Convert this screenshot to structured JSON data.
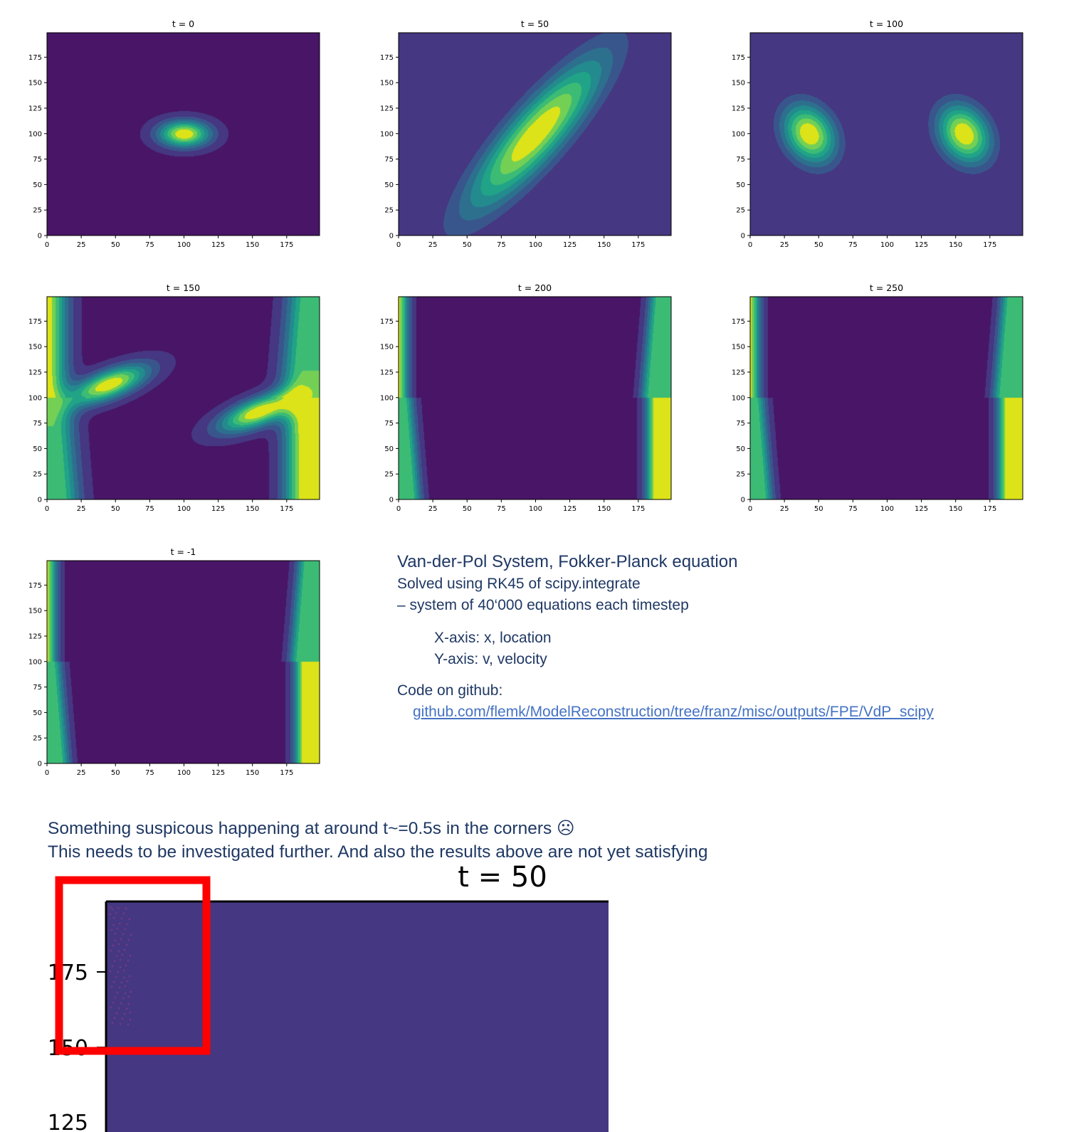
{
  "chart_data": [
    {
      "type": "heatmap",
      "title": "t = 0",
      "xlim": [
        0,
        199
      ],
      "ylim": [
        0,
        199
      ],
      "xticks": [
        "0",
        "25",
        "50",
        "75",
        "100",
        "125",
        "150",
        "175"
      ],
      "yticks": [
        "0",
        "25",
        "50",
        "75",
        "100",
        "125",
        "150",
        "175"
      ],
      "blobs": [
        {
          "x": 100,
          "y": 100,
          "sx": 13,
          "sy": 9,
          "peak": 1.0,
          "angle": 0
        }
      ]
    },
    {
      "type": "heatmap",
      "title": "t = 50",
      "xlim": [
        0,
        199
      ],
      "ylim": [
        0,
        199
      ],
      "xticks": [
        "0",
        "25",
        "50",
        "75",
        "100",
        "125",
        "150",
        "175"
      ],
      "yticks": [
        "0",
        "25",
        "50",
        "75",
        "100",
        "125",
        "150",
        "175"
      ],
      "blobs": [
        {
          "x": 100,
          "y": 100,
          "sx": 62,
          "sy": 15,
          "peak": 1.0,
          "angle": 58
        }
      ]
    },
    {
      "type": "heatmap",
      "title": "t = 100",
      "xlim": [
        0,
        199
      ],
      "ylim": [
        0,
        199
      ],
      "xticks": [
        "0",
        "25",
        "50",
        "75",
        "100",
        "125",
        "150",
        "175"
      ],
      "yticks": [
        "0",
        "25",
        "50",
        "75",
        "100",
        "125",
        "150",
        "175"
      ],
      "blobs": [
        {
          "x": 43,
          "y": 100,
          "sx": 13,
          "sy": 21,
          "peak": 1.0,
          "angle": 15
        },
        {
          "x": 156,
          "y": 100,
          "sx": 13,
          "sy": 21,
          "peak": 1.0,
          "angle": 15
        }
      ]
    },
    {
      "type": "heatmap",
      "title": "t = 150",
      "xlim": [
        0,
        199
      ],
      "ylim": [
        0,
        199
      ],
      "xticks": [
        "0",
        "25",
        "50",
        "75",
        "100",
        "125",
        "150",
        "175"
      ],
      "yticks": [
        "0",
        "25",
        "50",
        "75",
        "100",
        "125",
        "150",
        "175"
      ],
      "blobs": [
        {
          "x": 45,
          "y": 113,
          "sx": 22,
          "sy": 9,
          "peak": 1.0,
          "angle": 30
        },
        {
          "x": 154,
          "y": 86,
          "sx": 22,
          "sy": 9,
          "peak": 1.0,
          "angle": 30
        }
      ],
      "bands": [
        {
          "side": "left",
          "peak": 1.0,
          "w": 11
        },
        {
          "side": "right",
          "peak": 1.0,
          "w": 11
        }
      ]
    },
    {
      "type": "heatmap",
      "title": "t = 200",
      "xlim": [
        0,
        199
      ],
      "ylim": [
        0,
        199
      ],
      "xticks": [
        "0",
        "25",
        "50",
        "75",
        "100",
        "125",
        "150",
        "175"
      ],
      "yticks": [
        "0",
        "25",
        "50",
        "75",
        "100",
        "125",
        "150",
        "175"
      ],
      "bands": [
        {
          "side": "left",
          "peak": 1.0,
          "w": 6
        },
        {
          "side": "right",
          "peak": 1.0,
          "w": 6
        }
      ]
    },
    {
      "type": "heatmap",
      "title": "t = 250",
      "xlim": [
        0,
        199
      ],
      "ylim": [
        0,
        199
      ],
      "xticks": [
        "0",
        "25",
        "50",
        "75",
        "100",
        "125",
        "150",
        "175"
      ],
      "yticks": [
        "0",
        "25",
        "50",
        "75",
        "100",
        "125",
        "150",
        "175"
      ],
      "bands": [
        {
          "side": "left",
          "peak": 1.0,
          "w": 6
        },
        {
          "side": "right",
          "peak": 1.0,
          "w": 6
        }
      ]
    },
    {
      "type": "heatmap",
      "title": "t = -1",
      "xlim": [
        0,
        199
      ],
      "ylim": [
        0,
        199
      ],
      "xticks": [
        "0",
        "25",
        "50",
        "75",
        "100",
        "125",
        "150",
        "175"
      ],
      "yticks": [
        "0",
        "25",
        "50",
        "75",
        "100",
        "125",
        "150",
        "175"
      ],
      "bands": [
        {
          "side": "left",
          "peak": 1.0,
          "w": 6
        },
        {
          "side": "right",
          "peak": 1.0,
          "w": 6
        }
      ]
    }
  ],
  "colormap": [
    "#481567",
    "#453781",
    "#39568c",
    "#2d708e",
    "#238a8d",
    "#20a387",
    "#3cbb75",
    "#73d055",
    "#dce319"
  ],
  "notes": {
    "heading": "Van-der-Pol System, Fokker-Planck equation",
    "line1": "Solved using RK45 of scipy.integrate",
    "line2": "– system of 40‘000 equations each timestep",
    "xaxis": "X-axis: x, location",
    "yaxis": "Y-axis: v, velocity",
    "code_label": "Code on github:",
    "link": "github.com/flemk/ModelReconstruction/tree/franz/misc/outputs/FPE/VdP_scipy"
  },
  "remarks": {
    "line1": "Something suspicous happening at around t~=0.5s in the corners ☹",
    "line2": "This needs to be investigated further. And also the results above are not yet satisfying"
  },
  "zoom": {
    "title": "t = 50",
    "label_175": "175",
    "label_150": "150",
    "label_125": "125",
    "highlight_color": "#ff0000"
  }
}
